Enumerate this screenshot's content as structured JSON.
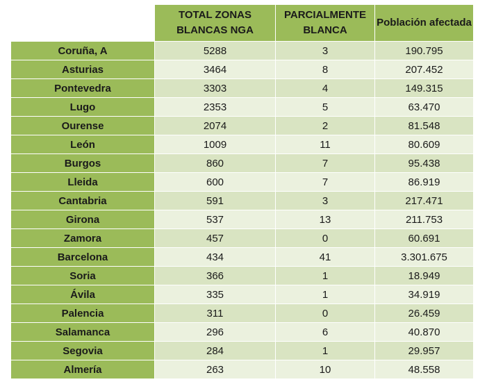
{
  "table": {
    "headers": [
      "",
      "TOTAL ZONAS BLANCAS NGA",
      "PARCIALMENTE BLANCA",
      "Población afectada"
    ],
    "rows": [
      [
        "Coruña, A",
        "5288",
        "3",
        "190.795"
      ],
      [
        "Asturias",
        "3464",
        "8",
        "207.452"
      ],
      [
        "Pontevedra",
        "3303",
        "4",
        "149.315"
      ],
      [
        "Lugo",
        "2353",
        "5",
        "63.470"
      ],
      [
        "Ourense",
        "2074",
        "2",
        "81.548"
      ],
      [
        "León",
        "1009",
        "11",
        "80.609"
      ],
      [
        "Burgos",
        "860",
        "7",
        "95.438"
      ],
      [
        "Lleida",
        "600",
        "7",
        "86.919"
      ],
      [
        "Cantabria",
        "591",
        "3",
        "217.471"
      ],
      [
        "Girona",
        "537",
        "13",
        "211.753"
      ],
      [
        "Zamora",
        "457",
        "0",
        "60.691"
      ],
      [
        "Barcelona",
        "434",
        "41",
        "3.301.675"
      ],
      [
        "Soria",
        "366",
        "1",
        "18.949"
      ],
      [
        "Ávila",
        "335",
        "1",
        "34.919"
      ],
      [
        "Palencia",
        "311",
        "0",
        "26.459"
      ],
      [
        "Salamanca",
        "296",
        "6",
        "40.870"
      ],
      [
        "Segovia",
        "284",
        "1",
        "29.957"
      ],
      [
        "Almería",
        "263",
        "10",
        "48.558"
      ]
    ]
  },
  "colors": {
    "header_green": "#9bbb59",
    "row_band_dark": "#d9e4c2",
    "row_band_light": "#ebf1de"
  }
}
